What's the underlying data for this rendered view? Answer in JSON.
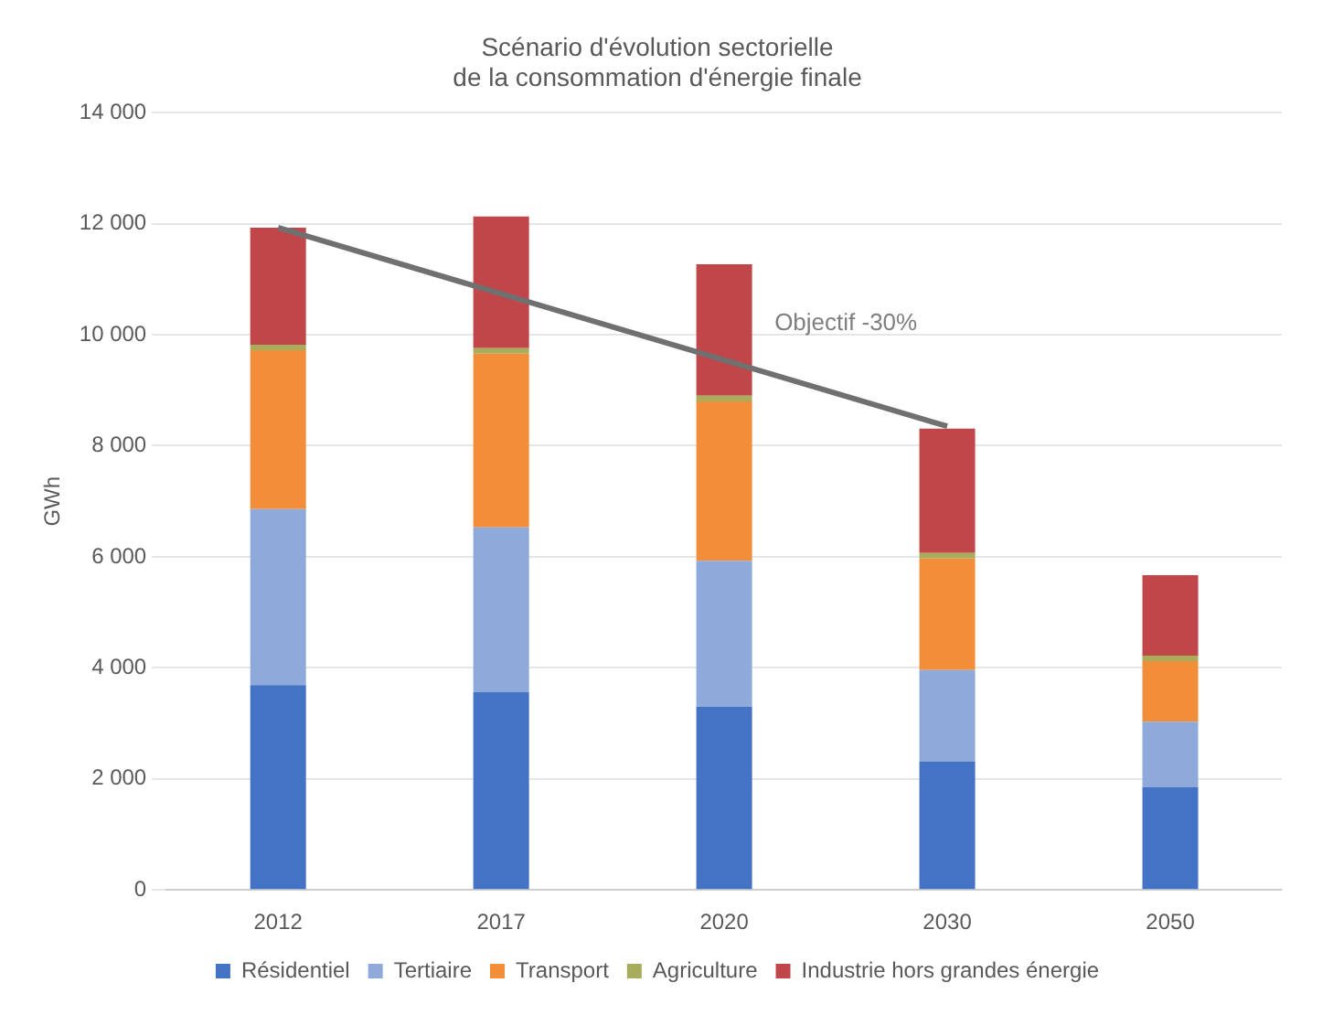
{
  "chart_data": {
    "type": "bar",
    "title": "Scénario d'évolution sectorielle\nde la consommation d'énergie finale",
    "ylabel": "GWh",
    "stacked": true,
    "categories": [
      "2012",
      "2017",
      "2020",
      "2030",
      "2050"
    ],
    "series": [
      {
        "name": "Résidentiel",
        "color": "#4472c4",
        "values": [
          3690,
          3560,
          3300,
          2310,
          1850
        ]
      },
      {
        "name": "Tertiaire",
        "color": "#8eaadb",
        "values": [
          3170,
          2970,
          2630,
          1650,
          1180
        ]
      },
      {
        "name": "Transport",
        "color": "#f28e3a",
        "values": [
          2860,
          3130,
          2870,
          2010,
          1090
        ]
      },
      {
        "name": "Agriculture",
        "color": "#a8ad5c",
        "values": [
          100,
          100,
          100,
          100,
          100
        ]
      },
      {
        "name": "Industrie hors grandes énergie",
        "color": "#c0464a",
        "values": [
          2110,
          2370,
          2370,
          2240,
          1450
        ]
      },
      {
        "name": "Objectif -30%",
        "type": "line",
        "color": "#707070",
        "values": [
          11930,
          null,
          null,
          8350,
          null
        ]
      }
    ],
    "ylim": [
      0,
      14000
    ],
    "yticks": [
      {
        "value": 0,
        "label": "0"
      },
      {
        "value": 2000,
        "label": "2 000"
      },
      {
        "value": 4000,
        "label": "4 000"
      },
      {
        "value": 6000,
        "label": "6 000"
      },
      {
        "value": 8000,
        "label": "8 000"
      },
      {
        "value": 10000,
        "label": "10 000"
      },
      {
        "value": 12000,
        "label": "12 000"
      },
      {
        "value": 14000,
        "label": "14 000"
      }
    ],
    "grid": "y",
    "legend": "bottom"
  }
}
